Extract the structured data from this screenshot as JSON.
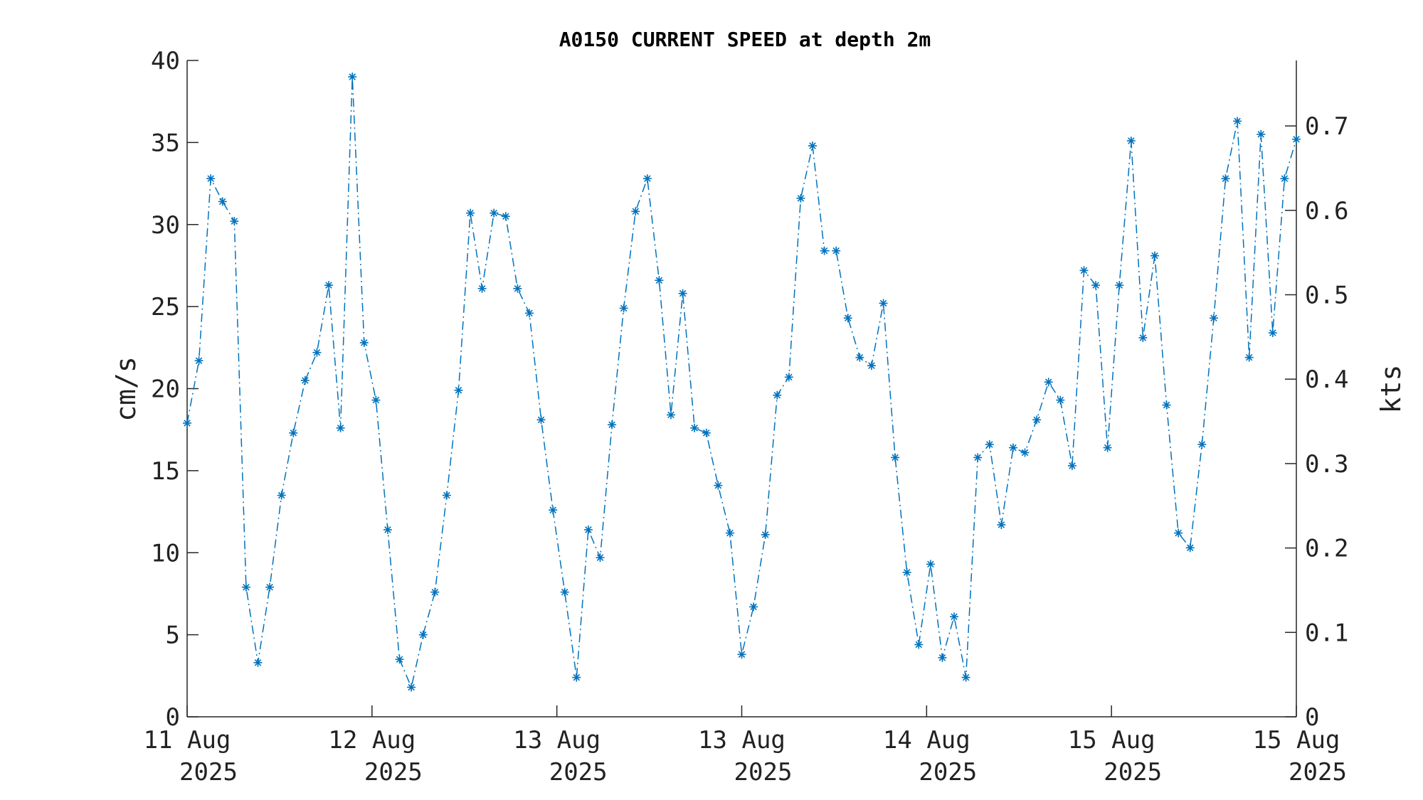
{
  "chart_data": {
    "type": "line",
    "title": "A0150 CURRENT SPEED at depth 2m",
    "ylabel": "cm/s",
    "ylabel_right": "kts",
    "ylim": [
      0,
      40
    ],
    "ylim_right": [
      0,
      0.7776
    ],
    "yticks": [
      "0",
      "5",
      "10",
      "15",
      "20",
      "25",
      "30",
      "35",
      "40"
    ],
    "yticks_right": [
      "0",
      "0.1",
      "0.2",
      "0.3",
      "0.4",
      "0.5",
      "0.6",
      "0.7"
    ],
    "xticks": [
      {
        "line1": "11 Aug",
        "line2": "2025"
      },
      {
        "line1": "12 Aug",
        "line2": "2025"
      },
      {
        "line1": "13 Aug",
        "line2": "2025"
      },
      {
        "line1": "13 Aug",
        "line2": "2025"
      },
      {
        "line1": "14 Aug",
        "line2": "2025"
      },
      {
        "line1": "15 Aug",
        "line2": "2025"
      },
      {
        "line1": "15 Aug",
        "line2": "2025"
      }
    ],
    "grid": false,
    "series": [
      {
        "color": "#0072BD",
        "line_style": "dash-dot",
        "marker": "asterisk",
        "values": [
          17.9,
          21.7,
          32.8,
          31.4,
          30.2,
          7.9,
          3.3,
          7.9,
          13.5,
          17.3,
          20.5,
          22.2,
          26.3,
          17.6,
          39.0,
          22.8,
          19.3,
          11.4,
          3.5,
          1.8,
          5.0,
          7.6,
          13.5,
          19.9,
          30.7,
          26.1,
          30.7,
          30.5,
          26.1,
          24.6,
          18.1,
          12.6,
          7.6,
          2.4,
          11.4,
          9.7,
          17.8,
          24.9,
          30.8,
          32.8,
          26.6,
          18.4,
          25.8,
          17.6,
          17.3,
          14.1,
          11.2,
          3.8,
          6.7,
          11.1,
          19.6,
          20.7,
          31.6,
          34.8,
          28.4,
          28.4,
          24.3,
          21.9,
          21.4,
          25.2,
          15.8,
          8.8,
          4.4,
          9.3,
          3.6,
          6.1,
          2.4,
          15.8,
          16.6,
          11.7,
          16.4,
          16.1,
          18.1,
          20.4,
          19.3,
          15.3,
          27.2,
          26.3,
          16.4,
          26.3,
          35.1,
          23.1,
          28.1,
          19.0,
          11.2,
          10.3,
          16.6,
          24.3,
          32.8,
          36.3,
          21.9,
          35.5,
          23.4,
          32.8,
          35.2
        ]
      }
    ]
  }
}
